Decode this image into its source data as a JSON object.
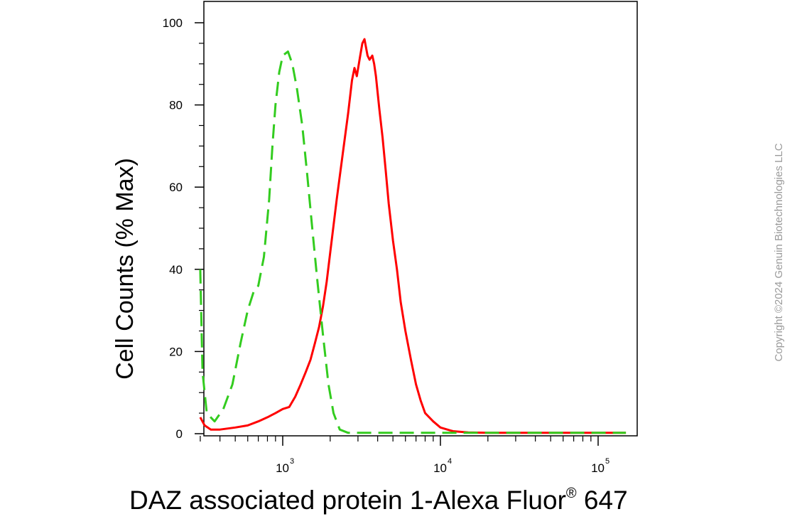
{
  "chart_data": {
    "type": "line",
    "title": "",
    "xlabel": "DAZ associated protein 1-Alexa Fluor",
    "xlabel_sup": "®",
    "xlabel_suffix": " 647",
    "ylabel": "Cell Counts (% Max)",
    "x_scale": "log",
    "xlim": [
      300,
      150000
    ],
    "ylim": [
      0,
      100
    ],
    "yticks": [
      "0",
      "20",
      "40",
      "60",
      "80",
      "100"
    ],
    "xticks": [
      {
        "value": 1000,
        "base": "10",
        "exp": "3"
      },
      {
        "value": 10000,
        "base": "10",
        "exp": "4"
      },
      {
        "value": 100000,
        "base": "10",
        "exp": "5"
      }
    ],
    "grid": false,
    "legend": "none",
    "series": [
      {
        "color": "#ff0000",
        "style": "solid",
        "points": [
          [
            300,
            4
          ],
          [
            320,
            2
          ],
          [
            350,
            1
          ],
          [
            400,
            1
          ],
          [
            500,
            1.5
          ],
          [
            600,
            2
          ],
          [
            700,
            3
          ],
          [
            800,
            4
          ],
          [
            900,
            5
          ],
          [
            1000,
            6
          ],
          [
            1100,
            6.5
          ],
          [
            1200,
            9
          ],
          [
            1300,
            12
          ],
          [
            1400,
            15
          ],
          [
            1500,
            18
          ],
          [
            1600,
            22
          ],
          [
            1700,
            26
          ],
          [
            1800,
            31
          ],
          [
            1900,
            37
          ],
          [
            2000,
            44
          ],
          [
            2200,
            57
          ],
          [
            2400,
            68
          ],
          [
            2600,
            78
          ],
          [
            2750,
            86
          ],
          [
            2850,
            89
          ],
          [
            2950,
            87
          ],
          [
            3100,
            92
          ],
          [
            3200,
            95
          ],
          [
            3300,
            96
          ],
          [
            3450,
            92
          ],
          [
            3550,
            91
          ],
          [
            3700,
            92
          ],
          [
            3800,
            90
          ],
          [
            3900,
            87
          ],
          [
            4100,
            79
          ],
          [
            4300,
            72
          ],
          [
            4500,
            64
          ],
          [
            4700,
            56
          ],
          [
            5000,
            47
          ],
          [
            5300,
            40
          ],
          [
            5600,
            32
          ],
          [
            6000,
            25
          ],
          [
            6500,
            18
          ],
          [
            7000,
            12
          ],
          [
            7500,
            8
          ],
          [
            8000,
            5
          ],
          [
            9000,
            3
          ],
          [
            10000,
            1.5
          ],
          [
            12000,
            0.6
          ],
          [
            15000,
            0.3
          ],
          [
            20000,
            0.2
          ],
          [
            50000,
            0.2
          ],
          [
            100000,
            0.2
          ],
          [
            150000,
            0.2
          ]
        ]
      },
      {
        "color": "#33cc1f",
        "style": "dashed",
        "points": [
          [
            300,
            40
          ],
          [
            310,
            15
          ],
          [
            330,
            5
          ],
          [
            370,
            3
          ],
          [
            420,
            6
          ],
          [
            480,
            12
          ],
          [
            540,
            22
          ],
          [
            600,
            30
          ],
          [
            660,
            35
          ],
          [
            700,
            36
          ],
          [
            760,
            43
          ],
          [
            820,
            57
          ],
          [
            860,
            70
          ],
          [
            900,
            80
          ],
          [
            950,
            88
          ],
          [
            1000,
            92
          ],
          [
            1080,
            93
          ],
          [
            1150,
            90
          ],
          [
            1230,
            84
          ],
          [
            1330,
            75
          ],
          [
            1430,
            63
          ],
          [
            1530,
            51
          ],
          [
            1650,
            38
          ],
          [
            1800,
            24
          ],
          [
            1950,
            12
          ],
          [
            2100,
            5
          ],
          [
            2300,
            1
          ],
          [
            2600,
            0.2
          ],
          [
            4000,
            0.2
          ],
          [
            7000,
            0.2
          ],
          [
            10000,
            0.2
          ],
          [
            150000,
            0.2
          ]
        ]
      }
    ]
  },
  "copyright": "Copyright ©2024 Genuin Biotechnologies LLC"
}
